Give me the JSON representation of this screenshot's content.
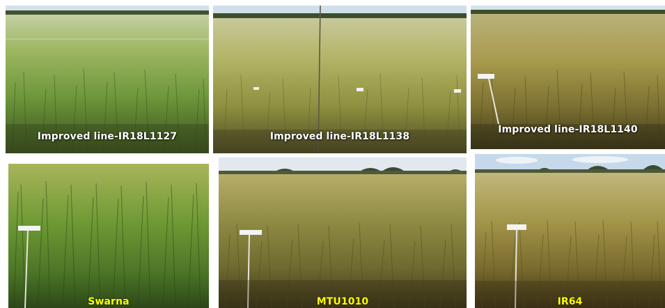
{
  "panels": [
    {
      "id": "p1",
      "caption": "Improved line-IR18L1127",
      "style": "white"
    },
    {
      "id": "p2",
      "caption": "Improved line-IR18L1138",
      "style": "white"
    },
    {
      "id": "p3",
      "caption": "Improved  line-IR18L1140",
      "style": "white"
    },
    {
      "id": "p4",
      "caption": "Swarna",
      "style": "yellow"
    },
    {
      "id": "p5",
      "caption": "MTU1010",
      "style": "yellow"
    },
    {
      "id": "p6",
      "caption": "IR64",
      "style": "yellow"
    }
  ],
  "colors": {
    "caption_white": "#ffffff",
    "caption_yellow": "#ffff00",
    "green_crop": "#4f7a2a",
    "golden_crop": "#b39a3c",
    "sky": "#cfe0ee"
  }
}
